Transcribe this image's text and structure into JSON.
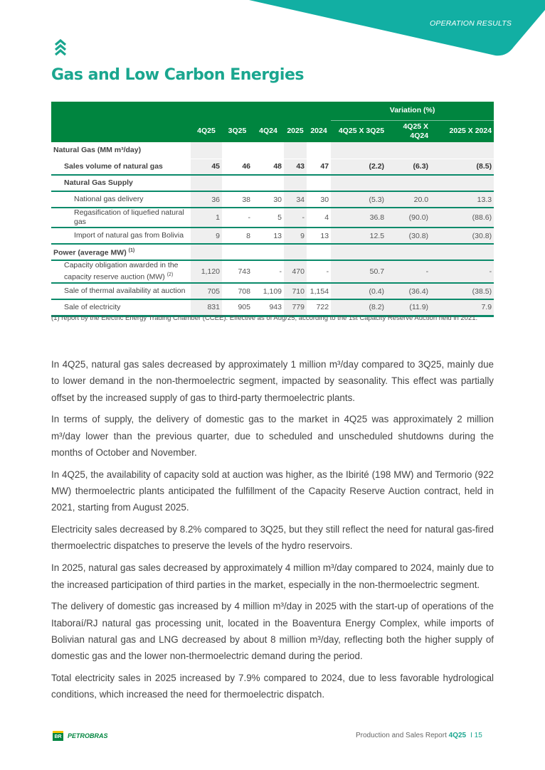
{
  "header": {
    "section": "OPERATION RESULTS",
    "title": "Gas and Low Carbon Energies",
    "accent": "#1aa68f",
    "table_green": "#00853f"
  },
  "table": {
    "variation_label": "Variation (%)",
    "columns": [
      "4Q25",
      "3Q25",
      "4Q24",
      "2025",
      "2024",
      "4Q25 X 3Q25",
      "4Q25 X 4Q24",
      "2025 X 2024"
    ],
    "sections": {
      "gas": "Natural Gas (MM m³/day)",
      "power": "Power (average MW)",
      "power_sup": "(1)"
    },
    "rows": [
      {
        "label": "Sales volume of natural gas",
        "values": [
          "45",
          "46",
          "48",
          "43",
          "47",
          "(2.2)",
          "(6.3)",
          "(8.5)"
        ]
      },
      {
        "label": "Natural Gas Supply",
        "values": []
      },
      {
        "label": "National gas delivery",
        "values": [
          "36",
          "38",
          "30",
          "34",
          "30",
          "(5.3)",
          "20.0",
          "13.3"
        ]
      },
      {
        "label": "Regasification of liquefied natural gas",
        "values": [
          "1",
          "-",
          "5",
          "-",
          "4",
          "36.8",
          "(90.0)",
          "(88.6)"
        ]
      },
      {
        "label": "Import of natural gas from Bolivia",
        "values": [
          "9",
          "8",
          "13",
          "9",
          "13",
          "12.5",
          "(30.8)",
          "(30.8)"
        ]
      },
      {
        "label": "Capacity obligation awarded in the capacity reserve auction (MW)",
        "sup": "(2)",
        "values": [
          "1,120",
          "743",
          "-",
          "470",
          "-",
          "50.7",
          "-",
          "-"
        ]
      },
      {
        "label": "Sale of thermal availability at auction",
        "values": [
          "705",
          "708",
          "1,109",
          "710",
          "1,154",
          "(0.4)",
          "(36.4)",
          "(38.5)"
        ]
      },
      {
        "label": "Sale of electricity",
        "values": [
          "831",
          "905",
          "943",
          "779",
          "722",
          "(8.2)",
          "(11.9)",
          "7.9"
        ]
      }
    ],
    "footnote": "(1)   report by the Electric Energy Trading Chamber (CCEE). Effective as of Aug/25, according to the 1st Capacity Reserve Auction held in 2021."
  },
  "paragraphs": [
    "In 4Q25, natural gas sales decreased by approximately 1 million m³/day compared to 3Q25, mainly due to lower demand in the non-thermoelectric segment, impacted by seasonality. This effect was partially offset by the increased supply of gas to third-party thermoelectric plants.",
    "In terms of supply, the delivery of domestic gas to the market in 4Q25 was approximately 2 million m³/day lower than the previous quarter, due to scheduled and unscheduled shutdowns during the months of October and November.",
    "In 4Q25, the availability of capacity sold at auction was higher, as the Ibirité (198 MW) and Termorio (922 MW) thermoelectric plants anticipated the fulfillment of the Capacity Reserve Auction contract, held in 2021, starting from August 2025.",
    "Electricity sales decreased by 8.2% compared to 3Q25, but they still reflect the need for natural gas-fired thermoelectric dispatches to preserve the levels of the hydro reservoirs.",
    "In 2025, natural gas sales decreased by approximately 4 million m³/day compared to 2024, mainly due to the increased participation of third parties in the market, especially in the non-thermoelectric segment.",
    "The delivery of domestic gas increased by 4 million m³/day in 2025 with the start-up of operations of the Itaboraí/RJ natural gas processing unit, located in the Boaventura Energy Complex, while imports of Bolivian natural gas and LNG decreased by about 8 million m³/day, reflecting both the higher supply of domestic gas and the lower non-thermoelectric demand during the period.",
    "Total electricity sales in 2025 increased by 7.9% compared to 2024, due to less favorable hydrological conditions, which increased the need for thermoelectric dispatch."
  ],
  "footer": {
    "logo": "PETROBRAS",
    "logo_mark": "BR",
    "report": "Production and Sales Report ",
    "quarter": "4Q25",
    "page": "I  15"
  }
}
